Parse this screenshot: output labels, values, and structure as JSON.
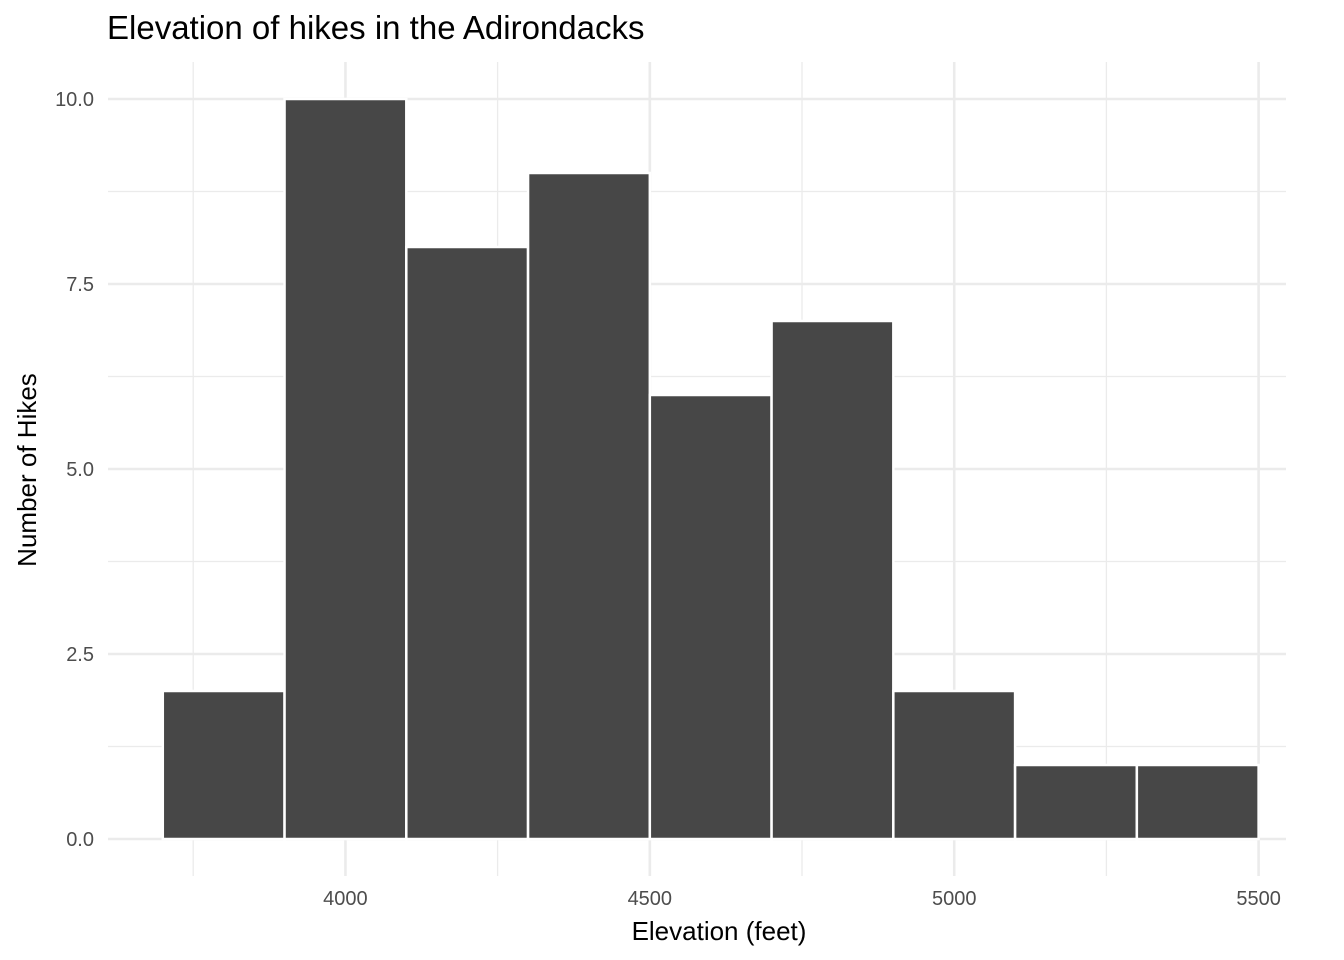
{
  "chart_data": {
    "type": "bar",
    "title": "Elevation of hikes in the Adirondacks",
    "xlabel": "Elevation (feet)",
    "ylabel": "Number of Hikes",
    "bins": [
      {
        "x0": 3700,
        "x1": 3900,
        "count": 2
      },
      {
        "x0": 3900,
        "x1": 4100,
        "count": 10
      },
      {
        "x0": 4100,
        "x1": 4300,
        "count": 8
      },
      {
        "x0": 4300,
        "x1": 4500,
        "count": 9
      },
      {
        "x0": 4500,
        "x1": 4700,
        "count": 6
      },
      {
        "x0": 4700,
        "x1": 4900,
        "count": 7
      },
      {
        "x0": 4900,
        "x1": 5100,
        "count": 2
      },
      {
        "x0": 5100,
        "x1": 5300,
        "count": 1
      },
      {
        "x0": 5300,
        "x1": 5500,
        "count": 1
      }
    ],
    "xlim": [
      3610,
      5545
    ],
    "ylim": [
      -0.5,
      10.5
    ],
    "x_ticks": [
      4000,
      4500,
      5000,
      5500
    ],
    "x_tick_labels": [
      "4000",
      "4500",
      "5000",
      "5500"
    ],
    "x_minor_ticks": [
      3750,
      4250,
      4750,
      5250
    ],
    "y_ticks": [
      0,
      2.5,
      5,
      7.5,
      10
    ],
    "y_tick_labels": [
      "0.0",
      "2.5",
      "5.0",
      "7.5",
      "10.0"
    ],
    "y_minor_ticks": [
      1.25,
      3.75,
      6.25,
      8.75
    ],
    "grid": true,
    "bar_color": "#474747",
    "bar_outline_color": "#ffffff",
    "grid_color": "#ebebeb"
  }
}
